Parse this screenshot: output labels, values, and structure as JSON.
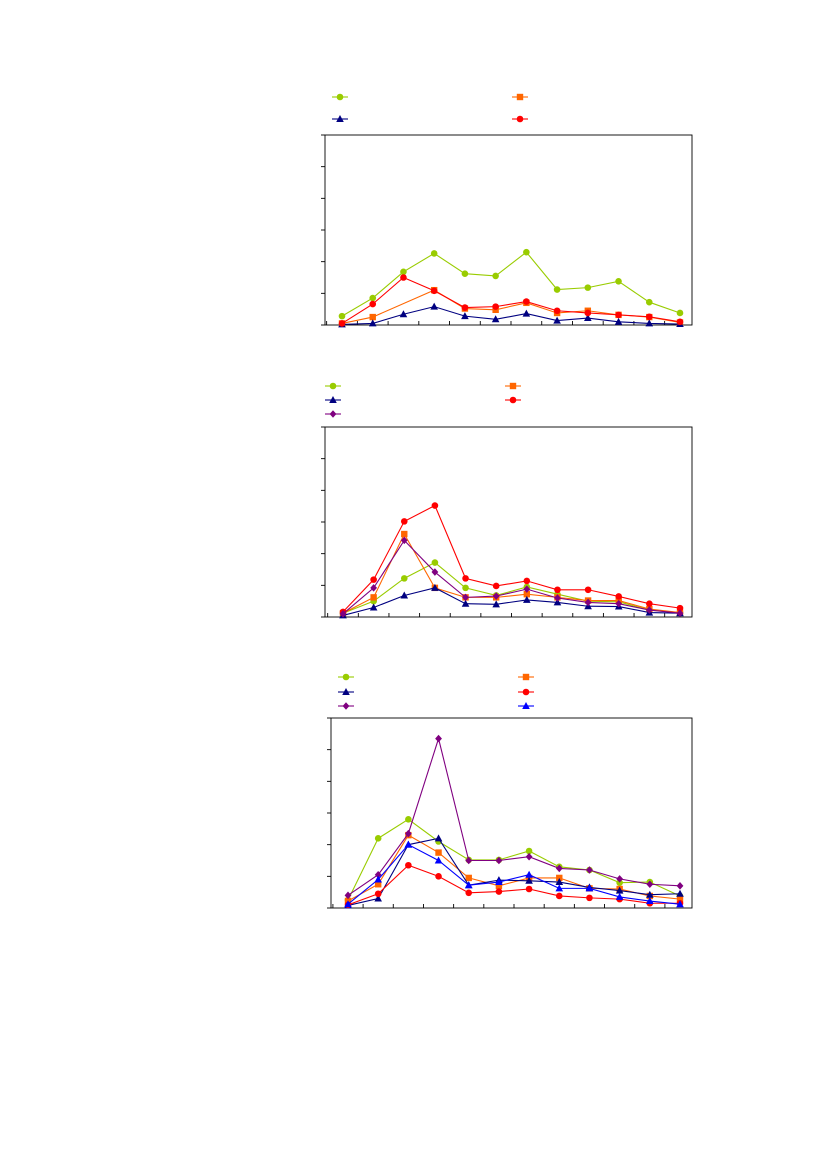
{
  "page": {
    "background": "#ffffff"
  },
  "chart_data": [
    {
      "type": "line",
      "title": "",
      "xlabel": "",
      "ylabel": "",
      "x": [
        1,
        2,
        3,
        4,
        5,
        6,
        7,
        8,
        9,
        10,
        11,
        12
      ],
      "ylim": [
        0,
        6
      ],
      "ytick_count": 6,
      "xtick_count": 12,
      "grid": false,
      "legend": {
        "position": "top",
        "columns": 2
      },
      "series": [
        {
          "name": "",
          "color": "#99cc00",
          "marker": "circle",
          "values": [
            0.28,
            0.85,
            1.68,
            2.26,
            1.62,
            1.55,
            2.3,
            1.12,
            1.18,
            1.38,
            0.72,
            0.38
          ]
        },
        {
          "name": "",
          "color": "#ff6600",
          "marker": "square",
          "values": [
            0.05,
            0.25,
            null,
            1.1,
            0.52,
            0.48,
            0.7,
            0.38,
            0.45,
            0.32,
            0.25,
            0.08
          ]
        },
        {
          "name": "",
          "color": "#000080",
          "marker": "triangle",
          "values": [
            0.02,
            0.05,
            0.34,
            0.58,
            0.28,
            0.18,
            0.36,
            0.14,
            0.22,
            0.1,
            0.05,
            0.03
          ]
        },
        {
          "name": "",
          "color": "#ff0000",
          "marker": "circle",
          "values": [
            0.05,
            0.66,
            1.5,
            1.08,
            0.55,
            0.58,
            0.74,
            0.45,
            0.38,
            0.32,
            0.26,
            0.1
          ]
        }
      ]
    },
    {
      "type": "line",
      "title": "",
      "xlabel": "",
      "ylabel": "",
      "x": [
        1,
        2,
        3,
        4,
        5,
        6,
        7,
        8,
        9,
        10,
        11,
        12
      ],
      "ylim": [
        0,
        6
      ],
      "ytick_count": 6,
      "xtick_count": 12,
      "grid": false,
      "legend": {
        "position": "top",
        "columns": 2
      },
      "series": [
        {
          "name": "",
          "color": "#99cc00",
          "marker": "circle",
          "values": [
            0.12,
            0.5,
            1.22,
            1.72,
            0.92,
            0.68,
            0.95,
            0.72,
            0.5,
            0.48,
            0.22,
            0.14
          ]
        },
        {
          "name": "",
          "color": "#ff6600",
          "marker": "square",
          "values": [
            0.12,
            0.62,
            2.62,
            0.92,
            0.62,
            0.62,
            0.72,
            0.62,
            0.52,
            0.52,
            0.25,
            0.14
          ]
        },
        {
          "name": "",
          "color": "#000080",
          "marker": "triangle",
          "values": [
            0.05,
            0.3,
            0.68,
            0.92,
            0.42,
            0.4,
            0.54,
            0.46,
            0.34,
            0.33,
            0.14,
            0.12
          ]
        },
        {
          "name": "",
          "color": "#ff0000",
          "marker": "circle",
          "values": [
            0.16,
            1.18,
            3.02,
            3.52,
            1.22,
            0.98,
            1.14,
            0.86,
            0.86,
            0.65,
            0.42,
            0.28
          ]
        },
        {
          "name": "",
          "color": "#800080",
          "marker": "diamond",
          "values": [
            0.1,
            0.92,
            2.42,
            1.42,
            0.62,
            0.66,
            0.88,
            0.6,
            0.46,
            0.42,
            0.22,
            0.12
          ]
        }
      ]
    },
    {
      "type": "line",
      "title": "",
      "xlabel": "",
      "ylabel": "",
      "x": [
        1,
        2,
        3,
        4,
        5,
        6,
        7,
        8,
        9,
        10,
        11,
        12
      ],
      "ylim": [
        0,
        6
      ],
      "ytick_count": 6,
      "xtick_count": 12,
      "grid": false,
      "legend": {
        "position": "top",
        "columns": 2
      },
      "series": [
        {
          "name": "",
          "color": "#99cc00",
          "marker": "circle",
          "values": [
            0.25,
            2.2,
            2.8,
            2.1,
            1.52,
            1.52,
            1.8,
            1.3,
            1.2,
            0.8,
            0.82,
            0.38
          ]
        },
        {
          "name": "",
          "color": "#ff6600",
          "marker": "square",
          "values": [
            0.22,
            0.75,
            2.3,
            1.75,
            0.95,
            0.7,
            0.95,
            0.95,
            0.62,
            0.6,
            0.38,
            0.28
          ]
        },
        {
          "name": "",
          "color": "#000080",
          "marker": "triangle",
          "values": [
            0.08,
            0.3,
            2.0,
            2.2,
            0.72,
            0.88,
            0.86,
            0.82,
            0.65,
            0.55,
            0.42,
            0.45
          ]
        },
        {
          "name": "",
          "color": "#ff0000",
          "marker": "circle",
          "values": [
            0.1,
            0.45,
            1.35,
            1.0,
            0.48,
            0.52,
            0.6,
            0.38,
            0.32,
            0.28,
            0.15,
            0.15
          ]
        },
        {
          "name": "",
          "color": "#800080",
          "marker": "diamond",
          "values": [
            0.4,
            1.05,
            2.35,
            5.35,
            1.5,
            1.5,
            1.62,
            1.25,
            1.2,
            0.92,
            0.75,
            0.7
          ]
        },
        {
          "name": "",
          "color": "#0000ff",
          "marker": "triangle",
          "values": [
            0.12,
            0.9,
            2.0,
            1.5,
            0.72,
            0.82,
            1.05,
            0.62,
            0.62,
            0.35,
            0.22,
            0.12
          ]
        }
      ]
    }
  ]
}
